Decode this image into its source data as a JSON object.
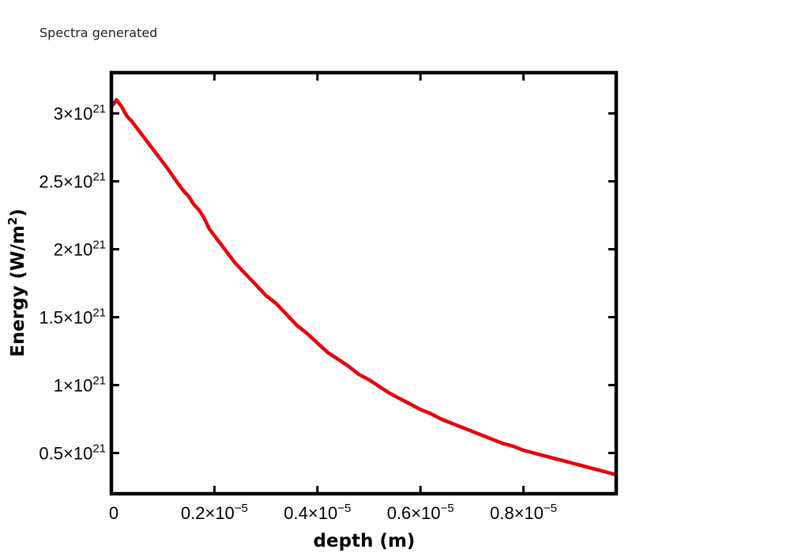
{
  "status_text": "Spectra generated",
  "chart_data": {
    "type": "line",
    "xlabel": "depth (m)",
    "ylabel_base": "Energy (W/m",
    "ylabel_exp": "2",
    "ylabel_close": ")",
    "xlim": [
      0,
      9.8e-06
    ],
    "ylim": [
      2e+20,
      3.3e+21
    ],
    "x_ticks": [
      {
        "value": 0,
        "mantissa": "0",
        "exp": ""
      },
      {
        "value": 2e-06,
        "mantissa": "0.2×10",
        "exp": "−5"
      },
      {
        "value": 4e-06,
        "mantissa": "0.4×10",
        "exp": "−5"
      },
      {
        "value": 6e-06,
        "mantissa": "0.6×10",
        "exp": "−5"
      },
      {
        "value": 8e-06,
        "mantissa": "0.8×10",
        "exp": "−5"
      }
    ],
    "y_ticks": [
      {
        "value": 5e+20,
        "mantissa": "0.5×10",
        "exp": "21"
      },
      {
        "value": 1e+21,
        "mantissa": "1×10",
        "exp": "21"
      },
      {
        "value": 1.5e+21,
        "mantissa": "1.5×10",
        "exp": "21"
      },
      {
        "value": 2e+21,
        "mantissa": "2×10",
        "exp": "21"
      },
      {
        "value": 2.5e+21,
        "mantissa": "2.5×10",
        "exp": "21"
      },
      {
        "value": 3e+21,
        "mantissa": "3×10",
        "exp": "21"
      }
    ],
    "series": [
      {
        "color": "#e8000b",
        "x": [
          0,
          1e-07,
          2e-07,
          3e-07,
          4e-07,
          5e-07,
          7e-07,
          9e-07,
          1.1e-06,
          1.3e-06,
          1.4e-06,
          1.5e-06,
          1.6e-06,
          1.7e-06,
          1.8e-06,
          1.9e-06,
          2e-06,
          2.2e-06,
          2.4e-06,
          2.6e-06,
          2.8e-06,
          3e-06,
          3.2e-06,
          3.4e-06,
          3.6e-06,
          3.8e-06,
          4e-06,
          4.2e-06,
          4.4e-06,
          4.6e-06,
          4.8e-06,
          5e-06,
          5.2e-06,
          5.4e-06,
          5.6e-06,
          5.8e-06,
          6e-06,
          6.2e-06,
          6.4e-06,
          6.6e-06,
          6.8e-06,
          7e-06,
          7.2e-06,
          7.4e-06,
          7.6e-06,
          7.8e-06,
          8e-06,
          8.2e-06,
          8.4e-06,
          8.6e-06,
          8.8e-06,
          9e-06,
          9.2e-06,
          9.4e-06,
          9.6e-06,
          9.8e-06
        ],
        "y": [
          3.05e+21,
          3.1e+21,
          3.05e+21,
          2.98e+21,
          2.94e+21,
          2.89e+21,
          2.79e+21,
          2.69e+21,
          2.59e+21,
          2.48e+21,
          2.43e+21,
          2.39e+21,
          2.33e+21,
          2.29e+21,
          2.23e+21,
          2.15e+21,
          2.1e+21,
          2e+21,
          1.9e+21,
          1.82e+21,
          1.74e+21,
          1.66e+21,
          1.6e+21,
          1.52e+21,
          1.44e+21,
          1.38e+21,
          1.31e+21,
          1.24e+21,
          1.19e+21,
          1.14e+21,
          1.08e+21,
          1.04e+21,
          9.9e+20,
          9.4e+20,
          9e+20,
          8.6e+20,
          8.2e+20,
          7.9e+20,
          7.5e+20,
          7.2e+20,
          6.9e+20,
          6.6e+20,
          6.3e+20,
          6e+20,
          5.7e+20,
          5.5e+20,
          5.2e+20,
          5e+20,
          4.8e+20,
          4.6e+20,
          4.4e+20,
          4.2e+20,
          4e+20,
          3.8e+20,
          3.6e+20,
          3.4e+20
        ]
      }
    ]
  }
}
